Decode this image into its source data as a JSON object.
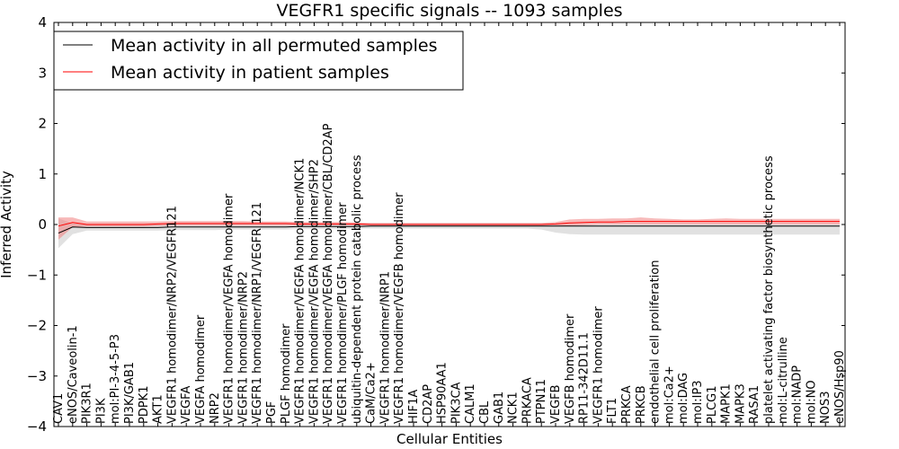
{
  "chart_data": {
    "type": "line",
    "title": "VEGFR1 specific signals -- 1093 samples",
    "xlabel": "Cellular Entities",
    "ylabel": "Inferred Activity",
    "ylim": [
      -4,
      4
    ],
    "yticks": [
      -4,
      -3,
      -2,
      -1,
      0,
      1,
      2,
      3,
      4
    ],
    "ytick_labels": [
      "−4",
      "−3",
      "−2",
      "−1",
      "0",
      "1",
      "2",
      "3",
      "4"
    ],
    "legend_position": "upper-left",
    "categories": [
      "CAV1",
      "eNOS/Caveolin-1",
      "PIK3R1",
      "PI3K",
      "mol:PI-3-4-5-P3",
      "PI3K/GAB1",
      "PDPK1",
      "AKT1",
      "VEGFR1 homodimer/NRP2/VEGFR121",
      "VEGFA",
      "VEGFA homodimer",
      "NRP2",
      "VEGFR1 homodimer/VEGFA homodimer",
      "VEGFR1 homodimer/NRP2",
      "VEGFR1 homodimer/NRP1/VEGFR 121",
      "PGF",
      "PLGF homodimer",
      "VEGFR1 homodimer/VEGFA homodimer/NCK1",
      "VEGFR1 homodimer/VEGFA homodimer/SHP2",
      "VEGFR1 homodimer/VEGFA homodimer/CBL/CD2AP",
      "VEGFR1 homodimer/PLGF homodimer",
      "ubiquitin-dependent protein catabolic process",
      "CaM/Ca2+",
      "VEGFR1 homodimer/NRP1",
      "VEGFR1 homodimer/VEGFB homodimer",
      "HIF1A",
      "CD2AP",
      "HSP90AA1",
      "PIK3CA",
      "CALM1",
      "CBL",
      "GAB1",
      "NCK1",
      "PRKACA",
      "PTPN11",
      "VEGFB",
      "VEGFB homodimer",
      "RP11-342D11.1",
      "VEGFR1 homodimer",
      "FLT1",
      "PRKCA",
      "PRKCB",
      "endothelial cell proliferation",
      "mol:Ca2+",
      "mol:DAG",
      "mol:IP3",
      "PLCG1",
      "MAPK1",
      "MAPK3",
      "RASA1",
      "platelet activating factor biosynthetic process",
      "mol:L-citrulline",
      "mol:NADP",
      "mol:NO",
      "NOS3",
      "eNOS/Hsp90"
    ],
    "series": [
      {
        "name": "Mean activity in all permuted samples",
        "color": "#000000",
        "band_color": "#c8c8c8",
        "values": [
          -0.17,
          -0.05,
          -0.06,
          -0.06,
          -0.06,
          -0.06,
          -0.06,
          -0.06,
          -0.05,
          -0.05,
          -0.05,
          -0.05,
          -0.05,
          -0.05,
          -0.05,
          -0.05,
          -0.05,
          -0.04,
          -0.04,
          -0.04,
          -0.04,
          -0.04,
          -0.03,
          -0.03,
          -0.03,
          -0.03,
          -0.03,
          -0.03,
          -0.03,
          -0.03,
          -0.03,
          -0.03,
          -0.03,
          -0.03,
          -0.03,
          -0.03,
          -0.03,
          -0.03,
          -0.03,
          -0.03,
          -0.03,
          -0.03,
          -0.03,
          -0.03,
          -0.03,
          -0.03,
          -0.03,
          -0.03,
          -0.03,
          -0.03,
          -0.03,
          -0.03,
          -0.03,
          -0.03,
          -0.03,
          -0.03
        ],
        "upper": [
          0.12,
          0.02,
          0.01,
          0.01,
          0.01,
          0.01,
          0.01,
          0.01,
          0.02,
          0.02,
          0.02,
          0.02,
          0.02,
          0.02,
          0.02,
          0.02,
          0.02,
          0.02,
          0.02,
          0.02,
          0.02,
          0.01,
          0.01,
          0.01,
          0.01,
          0.01,
          0.01,
          0.01,
          0.01,
          0.01,
          0.01,
          0.01,
          0.01,
          0.01,
          0.01,
          0.01,
          0.01,
          0.01,
          0.01,
          0.01,
          0.01,
          0.01,
          0.01,
          0.01,
          0.01,
          0.01,
          0.01,
          0.01,
          0.01,
          0.01,
          0.01,
          0.01,
          0.01,
          0.01,
          0.01,
          0.01
        ],
        "lower": [
          -0.47,
          -0.19,
          -0.12,
          -0.12,
          -0.12,
          -0.12,
          -0.12,
          -0.12,
          -0.11,
          -0.11,
          -0.11,
          -0.11,
          -0.1,
          -0.1,
          -0.1,
          -0.1,
          -0.1,
          -0.09,
          -0.09,
          -0.09,
          -0.09,
          -0.08,
          -0.08,
          -0.08,
          -0.08,
          -0.08,
          -0.08,
          -0.08,
          -0.08,
          -0.08,
          -0.08,
          -0.08,
          -0.08,
          -0.08,
          -0.1,
          -0.16,
          -0.19,
          -0.2,
          -0.2,
          -0.2,
          -0.2,
          -0.2,
          -0.2,
          -0.2,
          -0.2,
          -0.2,
          -0.2,
          -0.2,
          -0.2,
          -0.2,
          -0.2,
          -0.2,
          -0.2,
          -0.2,
          -0.2,
          -0.2
        ]
      },
      {
        "name": "Mean activity in patient samples",
        "color": "#ff0000",
        "band_color": "#f08080",
        "values": [
          -0.03,
          0.04,
          0.0,
          0.0,
          0.0,
          0.0,
          0.0,
          0.01,
          0.02,
          0.02,
          0.02,
          0.02,
          0.02,
          0.02,
          0.02,
          0.02,
          0.02,
          0.01,
          0.01,
          0.01,
          0.01,
          0.01,
          0.0,
          0.0,
          0.0,
          0.0,
          0.0,
          0.0,
          0.0,
          0.0,
          0.0,
          0.0,
          0.0,
          0.0,
          0.0,
          0.01,
          0.03,
          0.04,
          0.05,
          0.05,
          0.06,
          0.06,
          0.06,
          0.06,
          0.06,
          0.06,
          0.06,
          0.06,
          0.06,
          0.06,
          0.06,
          0.06,
          0.06,
          0.06,
          0.06,
          0.06
        ],
        "upper": [
          0.14,
          0.14,
          0.06,
          0.06,
          0.06,
          0.06,
          0.06,
          0.06,
          0.07,
          0.07,
          0.07,
          0.07,
          0.07,
          0.07,
          0.06,
          0.06,
          0.06,
          0.05,
          0.05,
          0.05,
          0.05,
          0.04,
          0.03,
          0.03,
          0.03,
          0.03,
          0.03,
          0.03,
          0.03,
          0.03,
          0.03,
          0.03,
          0.03,
          0.03,
          0.03,
          0.05,
          0.1,
          0.11,
          0.11,
          0.12,
          0.12,
          0.14,
          0.12,
          0.11,
          0.1,
          0.1,
          0.11,
          0.12,
          0.11,
          0.11,
          0.11,
          0.11,
          0.11,
          0.11,
          0.11,
          0.11
        ],
        "lower": [
          -0.3,
          -0.05,
          -0.04,
          -0.04,
          -0.04,
          -0.04,
          -0.04,
          -0.03,
          -0.02,
          -0.02,
          -0.02,
          -0.02,
          -0.02,
          -0.02,
          -0.02,
          -0.02,
          -0.02,
          -0.02,
          -0.02,
          -0.02,
          -0.02,
          -0.02,
          -0.02,
          -0.02,
          -0.02,
          -0.02,
          -0.02,
          -0.02,
          -0.02,
          -0.02,
          -0.02,
          -0.02,
          -0.02,
          -0.02,
          -0.02,
          -0.02,
          -0.02,
          -0.01,
          0.0,
          0.0,
          0.0,
          0.0,
          0.0,
          0.0,
          0.0,
          0.0,
          0.0,
          0.0,
          0.0,
          0.0,
          0.0,
          0.0,
          0.0,
          0.0,
          0.0,
          0.0
        ]
      }
    ]
  }
}
